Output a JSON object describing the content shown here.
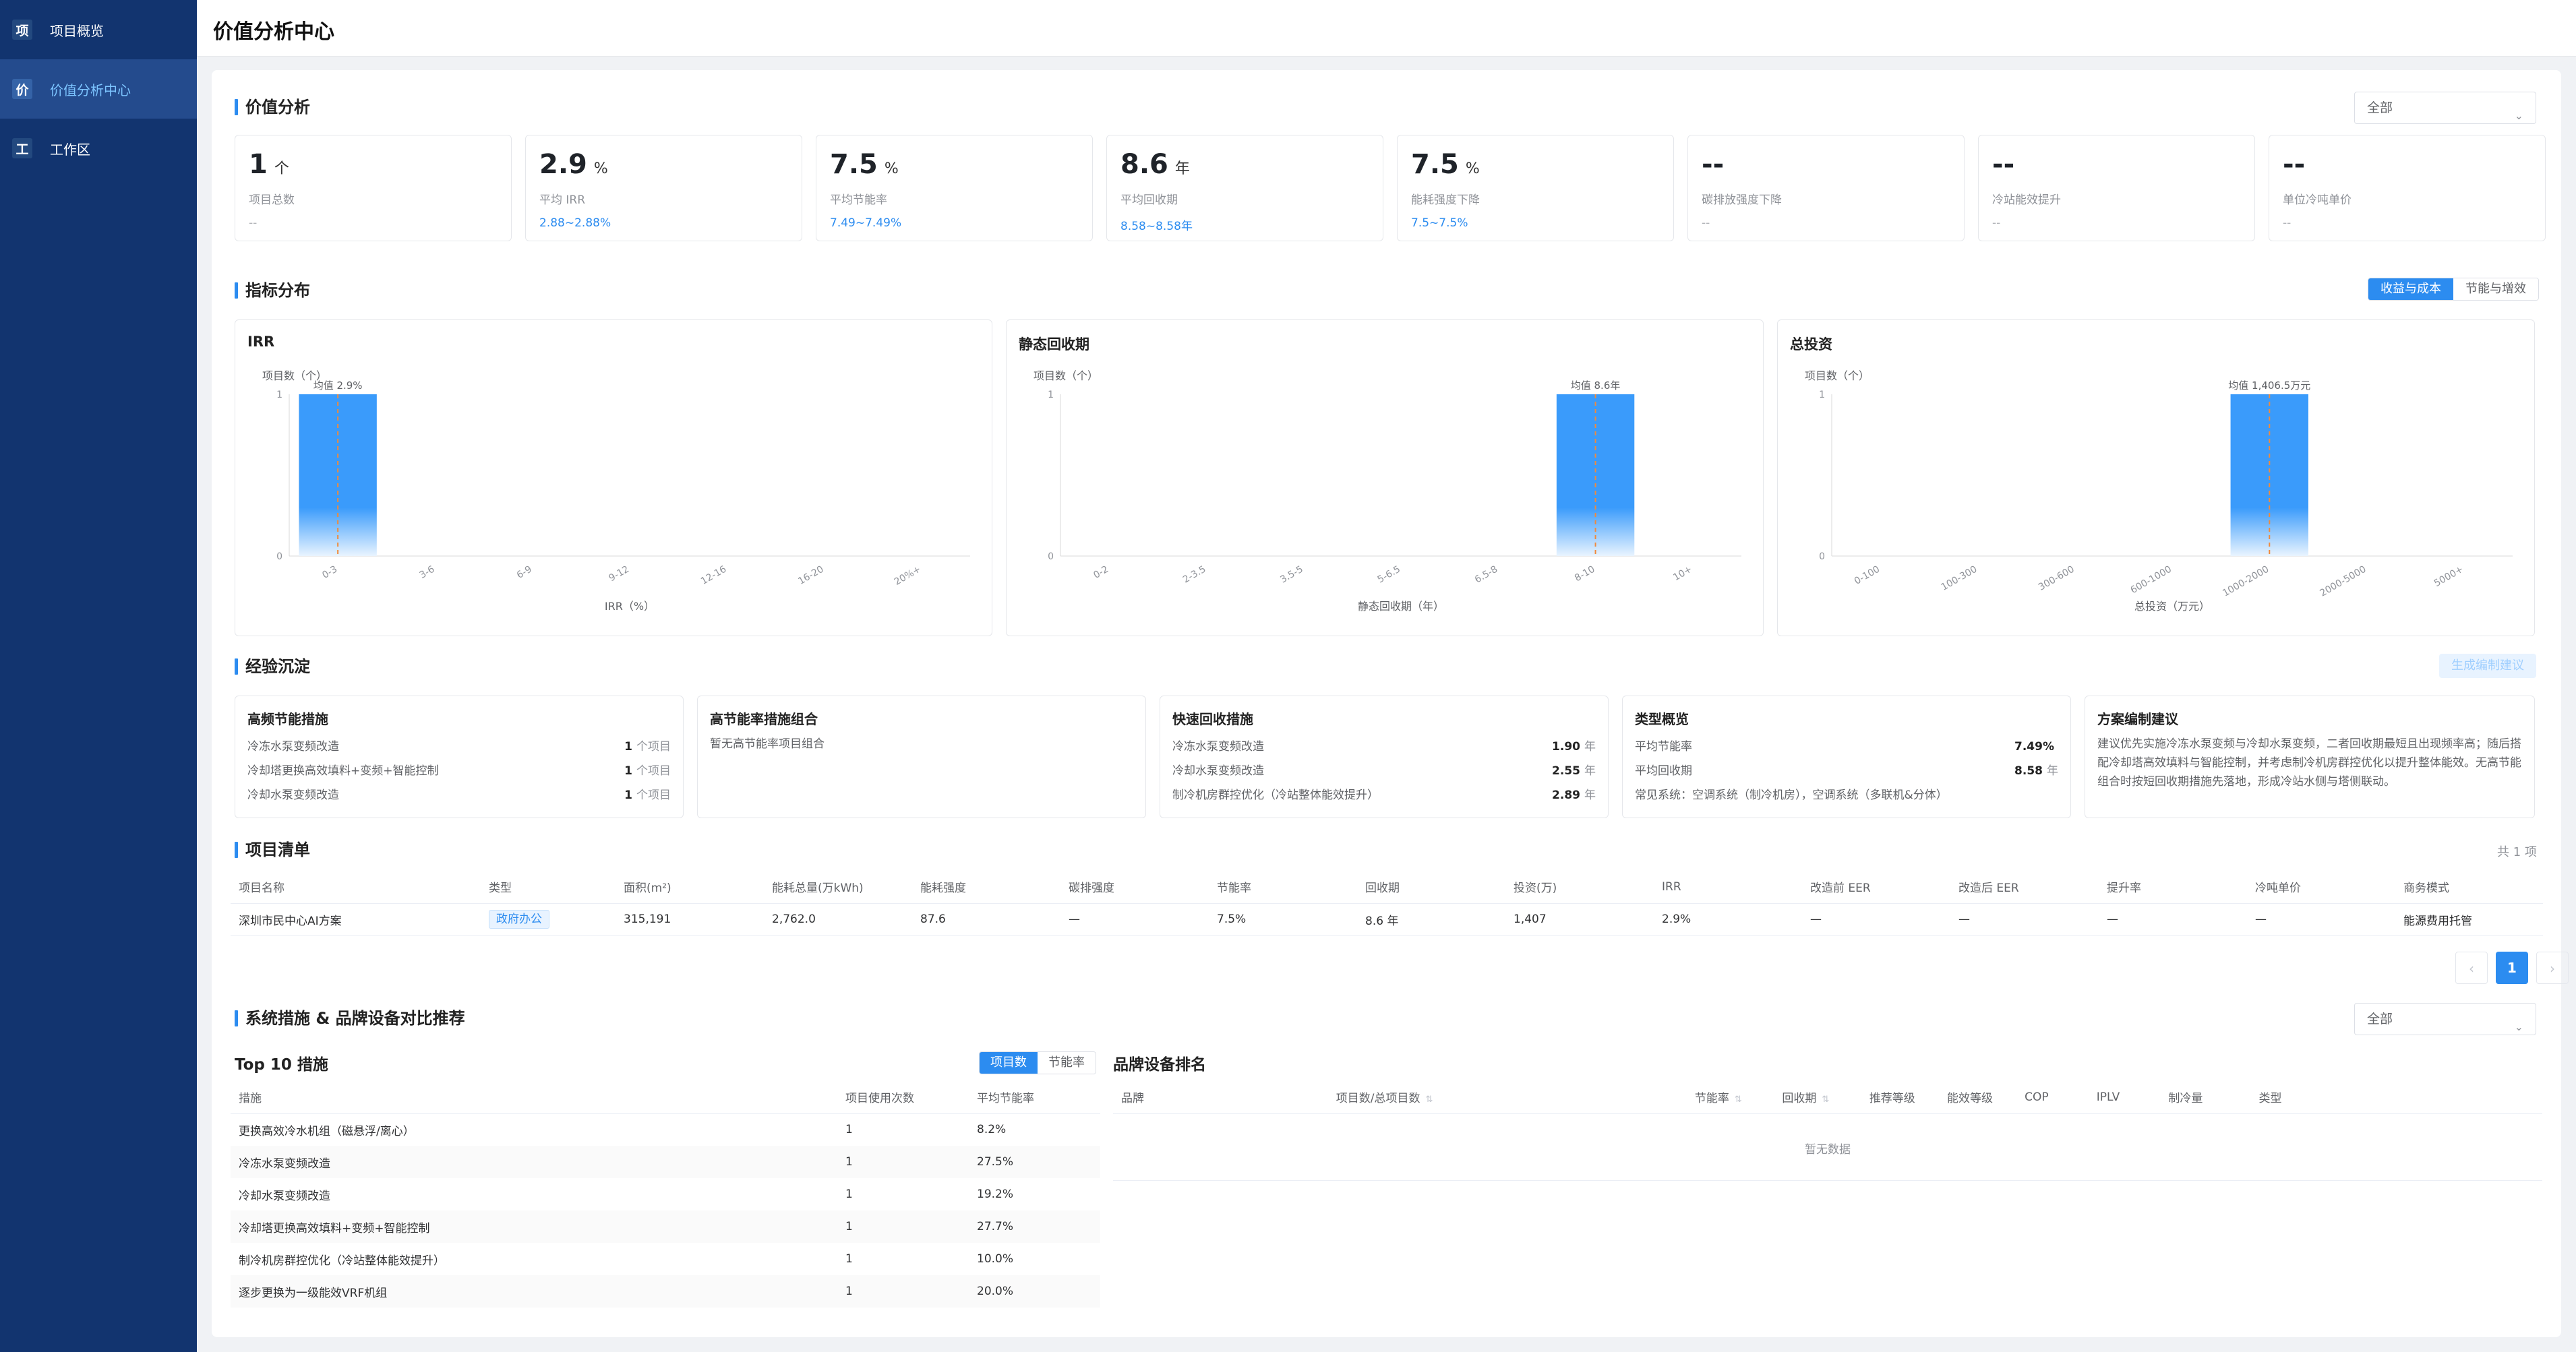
{
  "sidebar": {
    "items": [
      {
        "icon": "项",
        "label": "项目概览"
      },
      {
        "icon": "价",
        "label": "价值分析中心"
      },
      {
        "icon": "工",
        "label": "工作区"
      }
    ]
  },
  "page_title": "价值分析中心",
  "value_analysis": {
    "title": "价值分析",
    "filter": "全部",
    "kpis": [
      {
        "value": "1",
        "unit": "个",
        "label": "项目总数",
        "range": "--"
      },
      {
        "value": "2.9",
        "unit": "%",
        "label": "平均 IRR",
        "range": "2.88~2.88%"
      },
      {
        "value": "7.5",
        "unit": "%",
        "label": "平均节能率",
        "range": "7.49~7.49%"
      },
      {
        "value": "8.6",
        "unit": "年",
        "label": "平均回收期",
        "range": "8.58~8.58年"
      },
      {
        "value": "7.5",
        "unit": "%",
        "label": "能耗强度下降",
        "range": "7.5~7.5%"
      },
      {
        "value": "--",
        "unit": "",
        "label": "碳排放强度下降",
        "range": "--"
      },
      {
        "value": "--",
        "unit": "",
        "label": "冷站能效提升",
        "range": "--"
      },
      {
        "value": "--",
        "unit": "",
        "label": "单位冷吨单价",
        "range": "--"
      }
    ]
  },
  "distribution": {
    "title": "指标分布",
    "tabs": [
      "收益与成本",
      "节能与增效"
    ]
  },
  "chart_data": [
    {
      "type": "bar",
      "title": "IRR",
      "ylabel": "项目数（个）",
      "xlabel": "IRR（%）",
      "categories": [
        "0-3",
        "3-6",
        "6-9",
        "9-12",
        "12-16",
        "16-20",
        "20%+"
      ],
      "values": [
        1,
        0,
        0,
        0,
        0,
        0,
        0
      ],
      "ylim": [
        0,
        1
      ],
      "mean_label": "均值 2.9%",
      "mean_index": 0
    },
    {
      "type": "bar",
      "title": "静态回收期",
      "ylabel": "项目数（个）",
      "xlabel": "静态回收期（年）",
      "categories": [
        "0-2",
        "2-3.5",
        "3.5-5",
        "5-6.5",
        "6.5-8",
        "8-10",
        "10+"
      ],
      "values": [
        0,
        0,
        0,
        0,
        0,
        1,
        0
      ],
      "ylim": [
        0,
        1
      ],
      "mean_label": "均值 8.6年",
      "mean_index": 5
    },
    {
      "type": "bar",
      "title": "总投资",
      "ylabel": "项目数（个）",
      "xlabel": "总投资（万元）",
      "categories": [
        "0-100",
        "100-300",
        "300-600",
        "600-1000",
        "1000-2000",
        "2000-5000",
        "5000+"
      ],
      "values": [
        0,
        0,
        0,
        0,
        1,
        0,
        0
      ],
      "ylim": [
        0,
        1
      ],
      "mean_label": "均值 1,406.5万元",
      "mean_index": 4
    }
  ],
  "experience": {
    "title": "经验沉淀",
    "generate_button": "生成编制建议",
    "cards": {
      "frequent": {
        "title": "高频节能措施",
        "rows": [
          {
            "name": "冷冻水泵变频改造",
            "value": "1",
            "unit": "个项目"
          },
          {
            "name": "冷却塔更换高效填料+变频+智能控制",
            "value": "1",
            "unit": "个项目"
          },
          {
            "name": "冷却水泵变频改造",
            "value": "1",
            "unit": "个项目"
          }
        ]
      },
      "combo": {
        "title": "高节能率措施组合",
        "empty": "暂无高节能率项目组合"
      },
      "quick": {
        "title": "快速回收措施",
        "rows": [
          {
            "name": "冷冻水泵变频改造",
            "value": "1.90",
            "unit": "年"
          },
          {
            "name": "冷却水泵变频改造",
            "value": "2.55",
            "unit": "年"
          },
          {
            "name": "制冷机房群控优化（冷站整体能效提升）",
            "value": "2.89",
            "unit": "年"
          }
        ]
      },
      "types": {
        "title": "类型概览",
        "rows": [
          {
            "name": "平均节能率",
            "value": "7.49%",
            "unit": ""
          },
          {
            "name": "平均回收期",
            "value": "8.58",
            "unit": "年"
          }
        ],
        "note": "常见系统：空调系统（制冷机房），空调系统（多联机&分体）"
      },
      "advice": {
        "title": "方案编制建议",
        "text": "建议优先实施冷冻水泵变频与冷却水泵变频，二者回收期最短且出现频率高；随后搭配冷却塔高效填料与智能控制，并考虑制冷机房群控优化以提升整体能效。无高节能组合时按短回收期措施先落地，形成冷站水侧与塔侧联动。"
      }
    }
  },
  "project_list": {
    "title": "项目清单",
    "count": "共 1 项",
    "headers": [
      "项目名称",
      "类型",
      "面积(m²)",
      "能耗总量(万kWh)",
      "能耗强度",
      "碳排强度",
      "节能率",
      "回收期",
      "投资(万)",
      "IRR",
      "改造前 EER",
      "改造后 EER",
      "提升率",
      "冷吨单价",
      "商务模式"
    ],
    "rows": [
      [
        "深圳市民中心AI方案",
        "政府办公",
        "315,191",
        "2,762.0",
        "87.6",
        "—",
        "7.5%",
        "8.6 年",
        "1,407",
        "2.9%",
        "—",
        "—",
        "—",
        "—",
        "能源费用托管"
      ]
    ],
    "pager": {
      "prev": "‹",
      "page": "1",
      "next": "›"
    }
  },
  "system_measures": {
    "title": "系统措施 & 品牌设备对比推荐",
    "filter": "全部",
    "top10": {
      "title": "Top 10 措施",
      "tabs": [
        "项目数",
        "节能率"
      ],
      "headers": [
        "措施",
        "项目使用次数",
        "平均节能率"
      ],
      "rows": [
        [
          "更换高效冷水机组（磁悬浮/离心）",
          "1",
          "8.2%"
        ],
        [
          "冷冻水泵变频改造",
          "1",
          "27.5%"
        ],
        [
          "冷却水泵变频改造",
          "1",
          "19.2%"
        ],
        [
          "冷却塔更换高效填料+变频+智能控制",
          "1",
          "27.7%"
        ],
        [
          "制冷机房群控优化（冷站整体能效提升）",
          "1",
          "10.0%"
        ],
        [
          "逐步更换为一级能效VRF机组",
          "1",
          "20.0%"
        ]
      ]
    },
    "brand": {
      "title": "品牌设备排名",
      "headers": [
        "品牌",
        "项目数/总项目数",
        "节能率",
        "回收期",
        "推荐等级",
        "能效等级",
        "COP",
        "IPLV",
        "制冷量",
        "类型"
      ],
      "empty": "暂无数据"
    }
  },
  "colors": {
    "sidebar": "#12346f",
    "accent": "#2c8cf0",
    "bar": "#3a9bfb",
    "mean_line": "#f08a3c"
  }
}
